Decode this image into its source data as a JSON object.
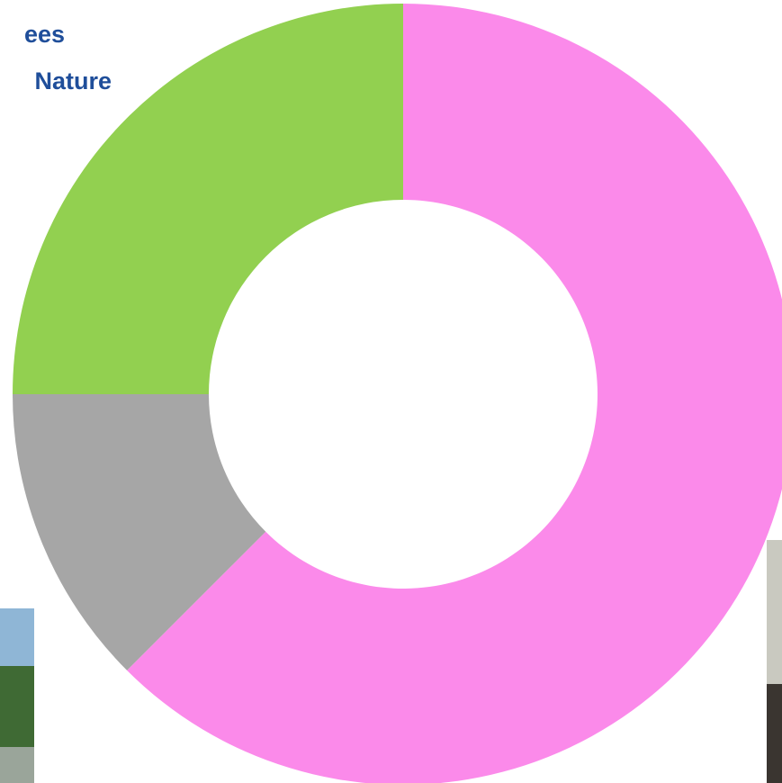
{
  "chart_data": {
    "type": "donut",
    "annotations": [
      "ees",
      "Nature"
    ],
    "values": [
      62.5,
      12.5,
      25
    ],
    "colors": [
      "#fb8aea",
      "#a6a6a6",
      "#92d050"
    ],
    "start_angle": 0,
    "direction": "clockwise"
  }
}
